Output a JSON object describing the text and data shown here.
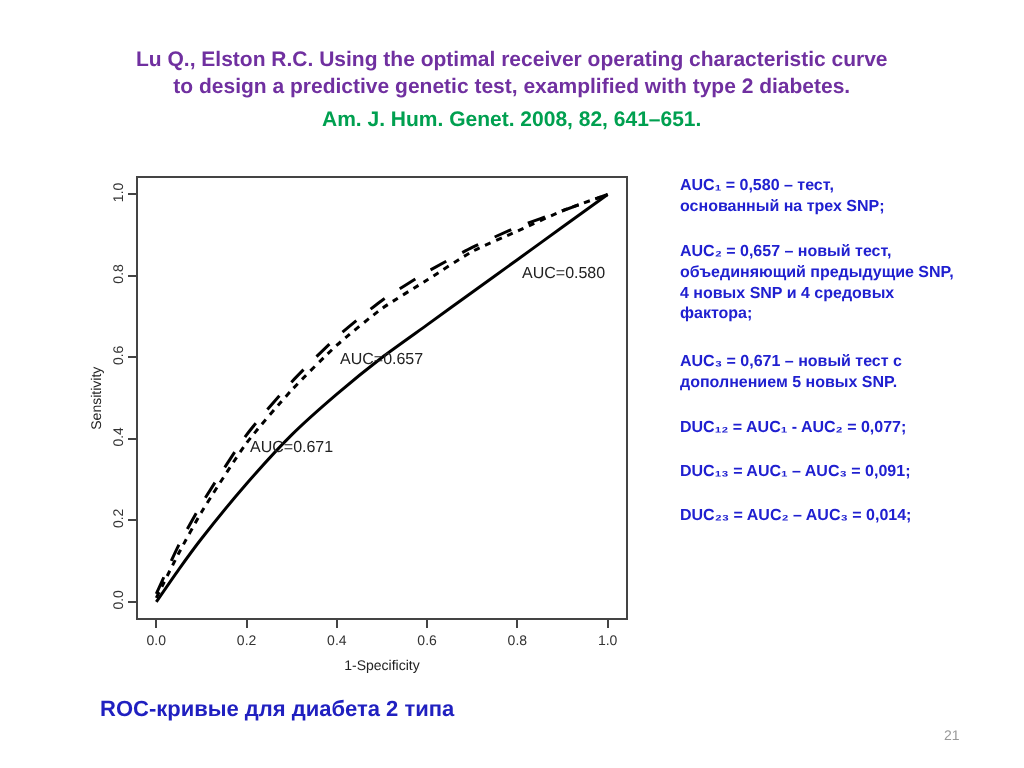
{
  "chart_data": {
    "type": "line",
    "title": "Lu Q., Elston R.C. Using the optimal receiver operating characteristic curve to design a predictive genetic test, examplified with type 2 diabetes.",
    "subtitle": "Am. J. Hum. Genet. 2008, 82, 641–651.",
    "xlabel": "1-Specificity",
    "ylabel": "Sensitivity",
    "x": [
      0,
      0.05,
      0.1,
      0.2,
      0.3,
      0.4,
      0.5,
      0.6,
      0.7,
      0.8,
      0.9,
      1
    ],
    "series": [
      {
        "color": "#000000",
        "line_style": "solid",
        "values": [
          0,
          0.08,
          0.155,
          0.29,
          0.41,
          0.51,
          0.6,
          0.68,
          0.76,
          0.84,
          0.92,
          1
        ]
      },
      {
        "color": "#000000",
        "line_style": "dotted",
        "values": [
          0.01,
          0.12,
          0.22,
          0.39,
          0.52,
          0.63,
          0.72,
          0.79,
          0.86,
          0.91,
          0.96,
          1
        ]
      },
      {
        "color": "#000000",
        "line_style": "dashed",
        "values": [
          0.02,
          0.14,
          0.24,
          0.41,
          0.54,
          0.65,
          0.74,
          0.81,
          0.87,
          0.92,
          0.96,
          1
        ]
      }
    ],
    "xlim": [
      -0.04,
      1.04
    ],
    "ylim": [
      -0.04,
      1.04
    ],
    "xticks": [
      {
        "value": 0,
        "label": "0.0"
      },
      0.2,
      0.4,
      0.6,
      0.8,
      {
        "value": 1,
        "label": "1.0"
      }
    ],
    "yticks": [
      {
        "value": 0,
        "label": "0.0"
      },
      0.2,
      0.4,
      0.6,
      0.8,
      {
        "value": 1,
        "label": "1.0"
      }
    ],
    "marker": "none",
    "annotations": [
      {
        "text": "AUC=0.580",
        "x": 0.8,
        "y": 0.84
      },
      {
        "text": "AUC=0.657",
        "x": 0.4,
        "y": 0.63
      },
      {
        "text": "AUC=0.671",
        "x": 0.2,
        "y": 0.41
      },
      "AUC₁ = 0,580 – тест, основанный на трех SNP;",
      "AUC₂ = 0,657 – новый тест, объединяющий предыдущие SNP, 4 новых SNP и 4 средовых фактора;",
      "AUC₃ = 0,671 – новый тест с дополнением 5 новых SNP.",
      "DUC₁₂ = AUC₁ - AUC₂ = 0,077;",
      "DUC₁₃ = AUC₁ – AUC₃ = 0,091;",
      "DUC₂₃ = AUC₂ – AUC₃ = 0,014;",
      "ROC-кривые для диабета 2 типа",
      "21"
    ]
  }
}
